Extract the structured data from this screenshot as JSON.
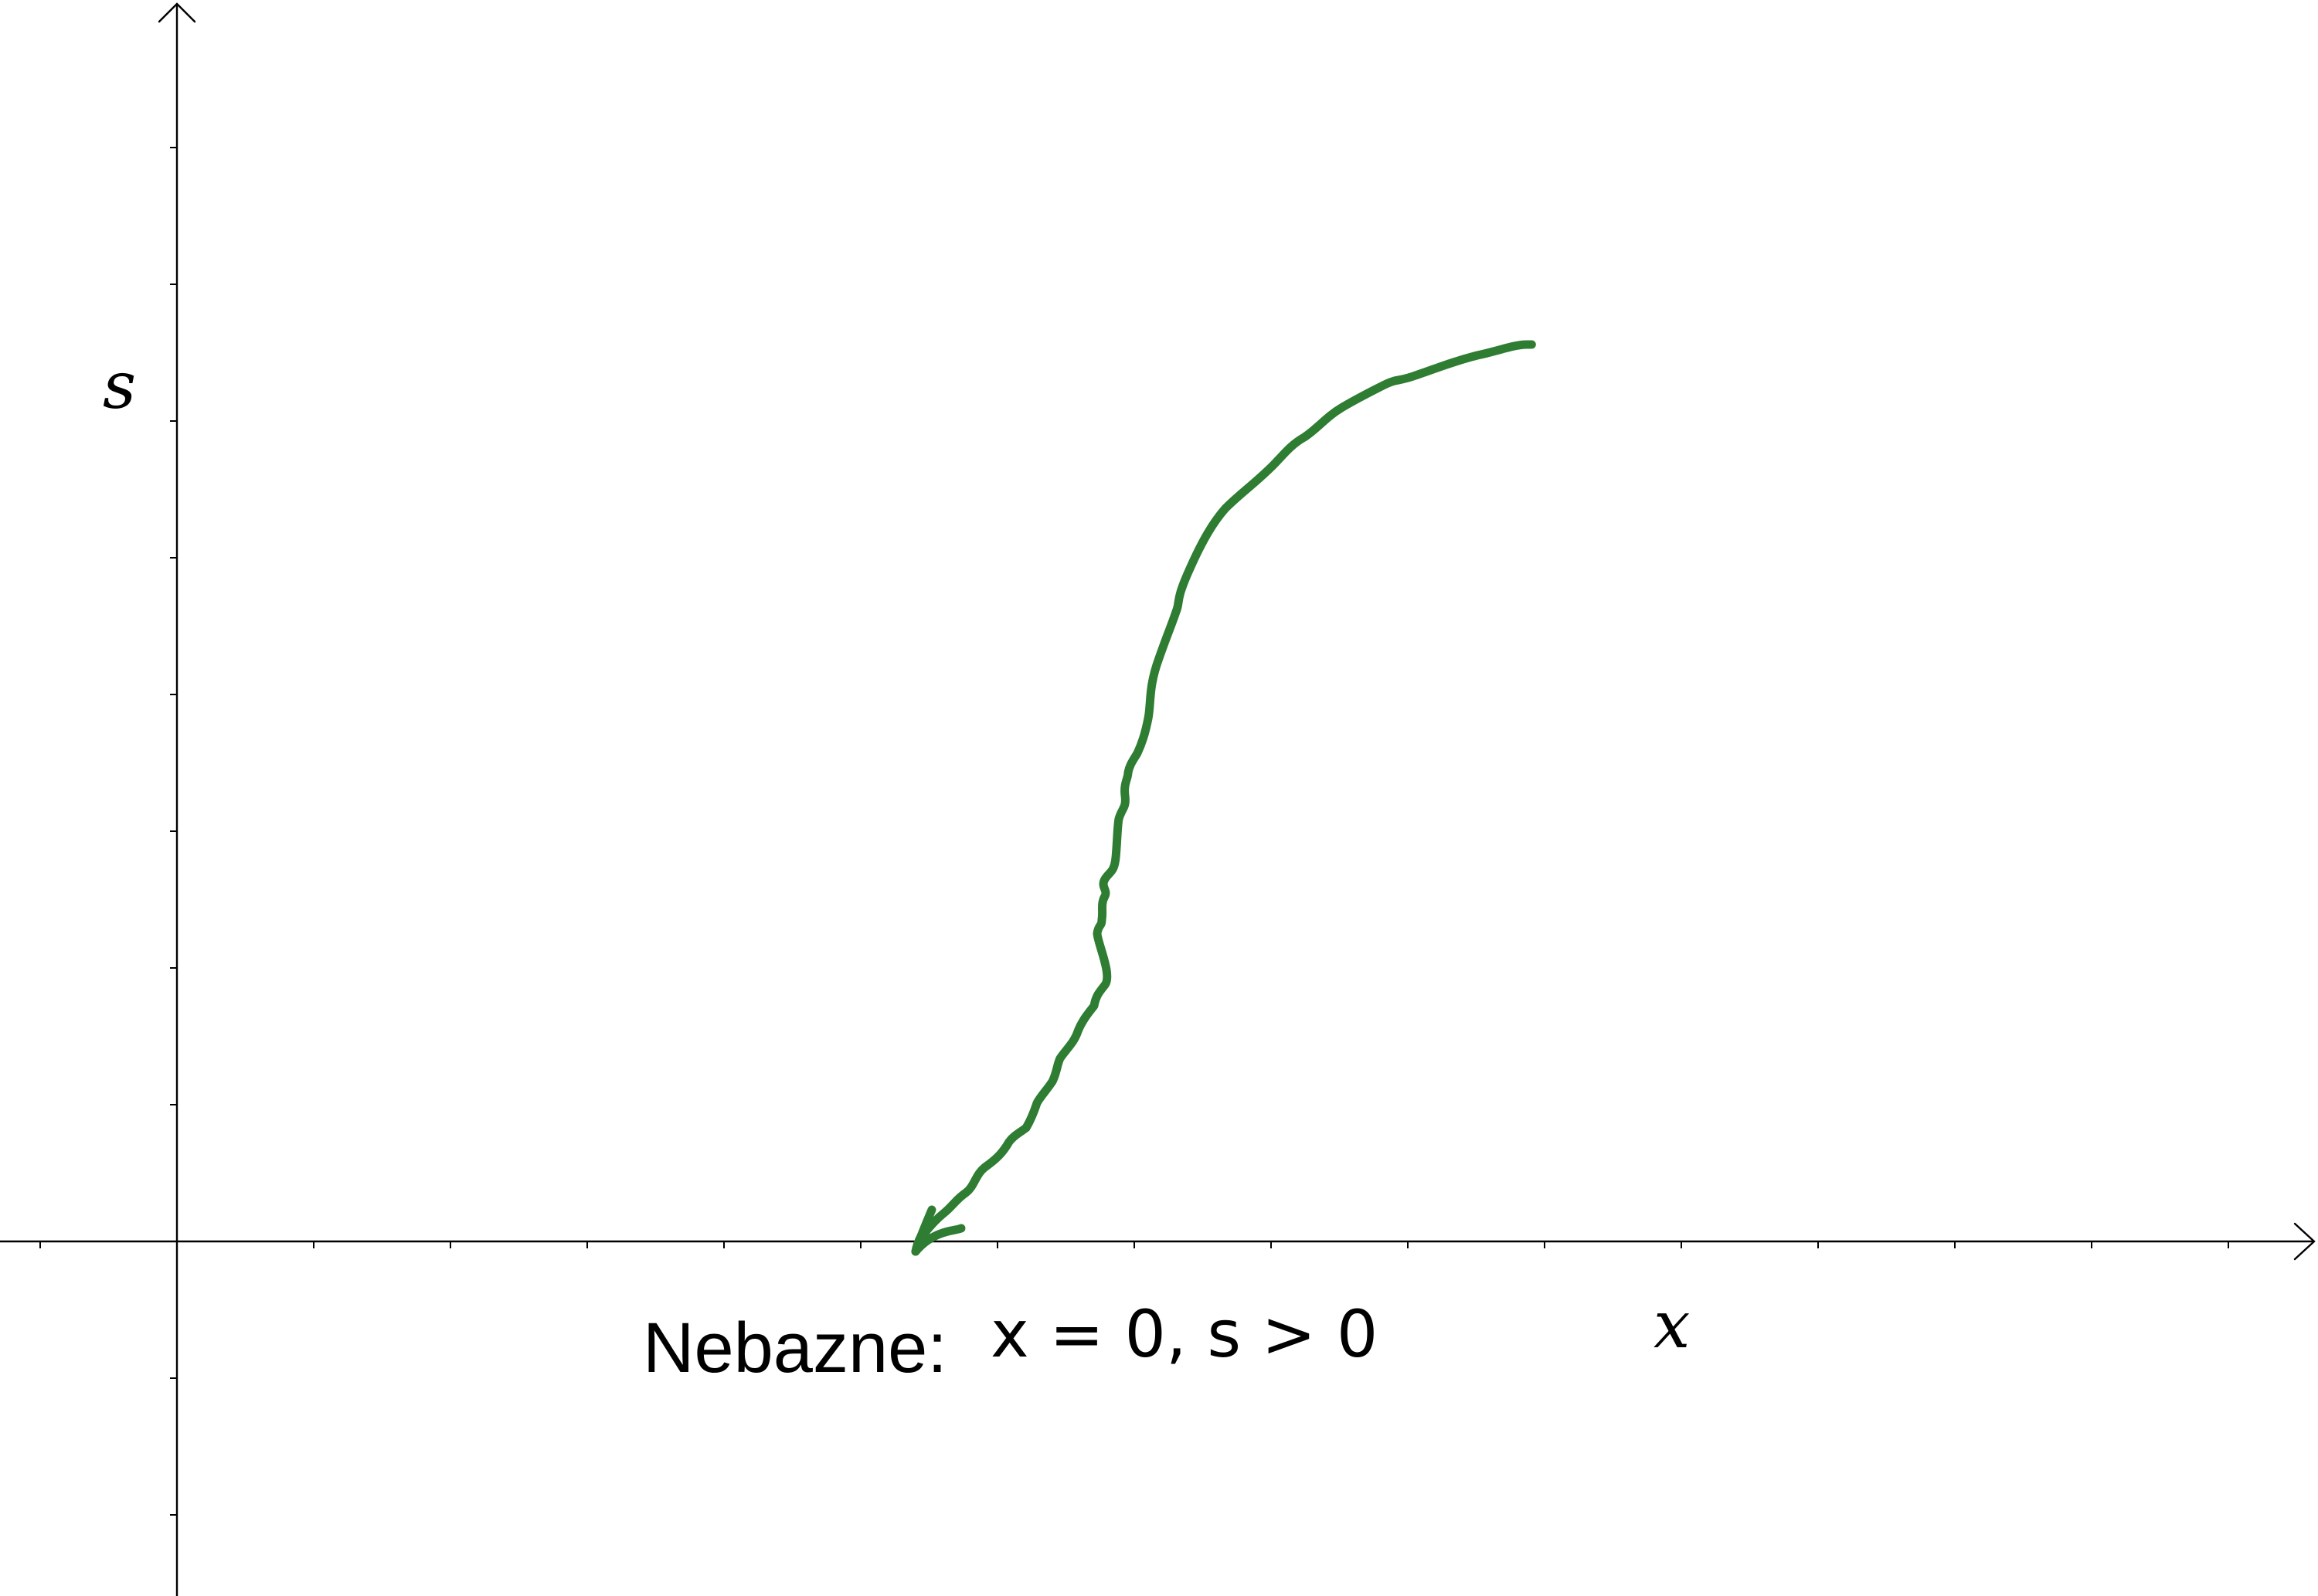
{
  "axes": {
    "x_label": "x",
    "y_label": "s"
  },
  "annotation": {
    "prefix": "Nebazne:",
    "condition": "x = 0, s > 0"
  },
  "colors": {
    "curve": "#2e7d32",
    "axis": "#000000"
  }
}
